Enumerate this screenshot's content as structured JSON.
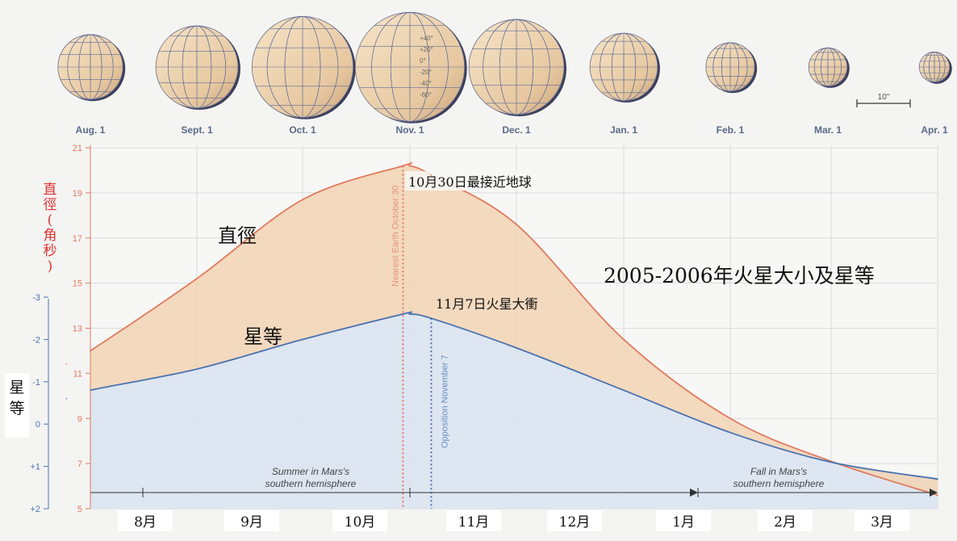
{
  "month_header": [
    "Aug. 1",
    "Sept. 1",
    "Oct. 1",
    "Nov. 1",
    "Dec. 1",
    "Jan. 1",
    "Feb. 1",
    "Mar. 1",
    "Apr. 1"
  ],
  "globe_diameters_arcsec": [
    12.0,
    15.2,
    18.7,
    20.2,
    17.6,
    12.5,
    9.0,
    7.1,
    5.6
  ],
  "globe_latitude_labels": [
    "+40°",
    "+20°",
    "0°",
    "-20°",
    "-40°",
    "-60°"
  ],
  "scale_bar_label": "10\"",
  "diameter_axis_label": "直徑(角秒)",
  "magnitude_axis_label": "星等",
  "curve_label_diameter": "直徑",
  "curve_label_magnitude": "星等",
  "nearest_annotation": "10月30日最接近地球",
  "opposition_annotation": "11月7日火星大衝",
  "nearest_rotated_label": "Nearest Earth October 30",
  "opposition_rotated_label": "Opposition November 7",
  "season_summer": "Summer in Mars's southern hemisphere",
  "season_fall": "Fall in Mars's southern hemisphere",
  "month_labels_zh": [
    "8月",
    "9月",
    "10月",
    "11月",
    "12月",
    "1月",
    "2月",
    "3月"
  ],
  "colors": {
    "diameter": "#e07a5f",
    "magnitude": "#4a72b0",
    "fill": "#f2d3b4",
    "lower_fill": "#d9e3f1",
    "grid": "#d0d3d6"
  },
  "chart_data": {
    "type": "line",
    "title": "2005-2006年火星大小及星等",
    "x": [
      "2005-07-25",
      "2005-08-01",
      "2005-09-01",
      "2005-10-01",
      "2005-10-30",
      "2005-11-01",
      "2005-11-07",
      "2005-12-01",
      "2006-01-01",
      "2006-02-01",
      "2006-03-01",
      "2006-04-01"
    ],
    "series": [
      {
        "name": "直徑",
        "axis": "left",
        "values": [
          11.4,
          12.0,
          15.2,
          18.7,
          20.2,
          20.2,
          19.8,
          17.6,
          12.5,
          9.0,
          7.1,
          5.6
        ]
      },
      {
        "name": "星等",
        "axis": "right",
        "values": [
          -0.6,
          -0.8,
          -1.3,
          -2.0,
          -2.6,
          -2.6,
          -2.5,
          -1.8,
          -0.8,
          0.2,
          0.9,
          1.3
        ]
      }
    ],
    "left_axis": {
      "label": "直徑(角秒)",
      "ticks": [
        5,
        7,
        9,
        11,
        13,
        15,
        17,
        19,
        21
      ],
      "range": [
        5,
        21
      ]
    },
    "right_axis": {
      "label": "星等",
      "ticks": [
        "-3",
        "-2",
        "-1",
        "0",
        "+1",
        "+2"
      ],
      "range": [
        -3,
        2
      ],
      "inverted": true
    },
    "grid": true,
    "events": [
      {
        "date": "2005-10-30",
        "label": "10月30日最接近地球"
      },
      {
        "date": "2005-11-07",
        "label": "11月7日火星大衝"
      }
    ]
  }
}
